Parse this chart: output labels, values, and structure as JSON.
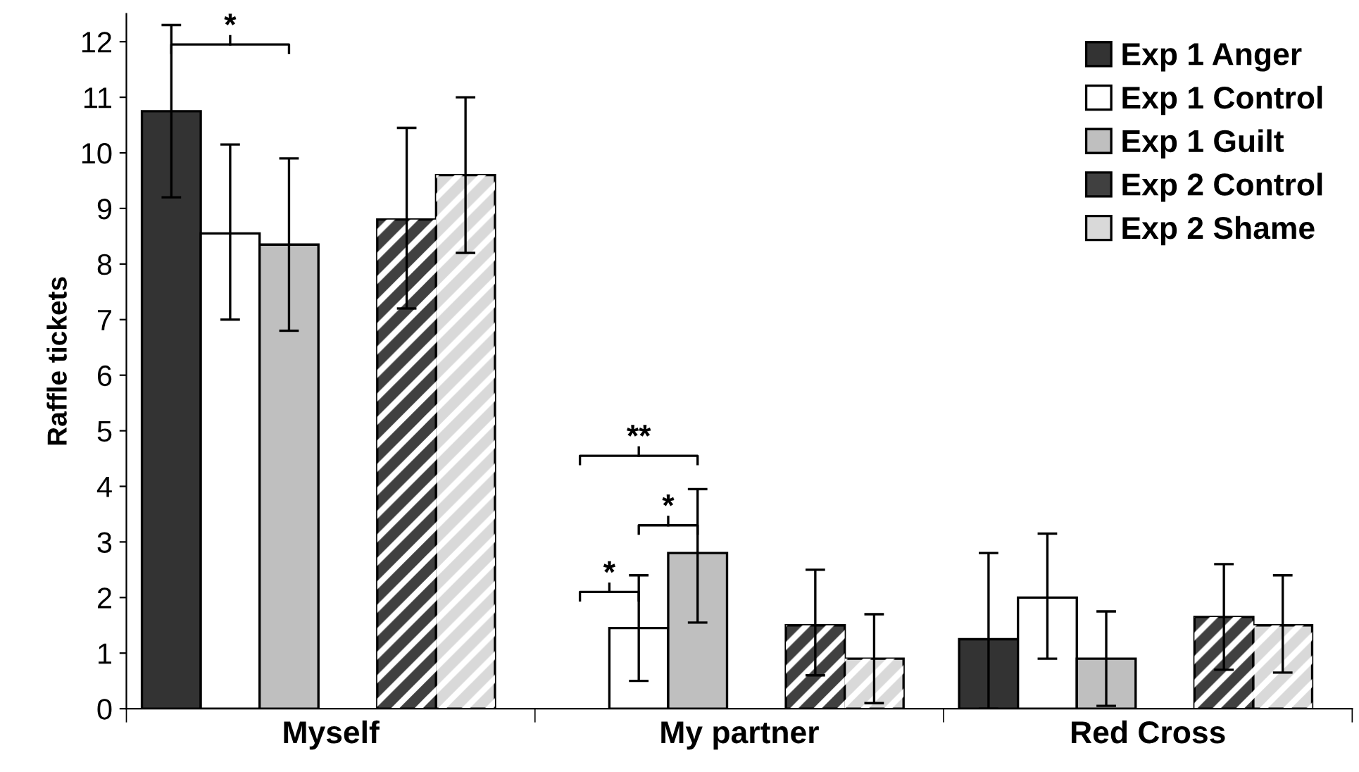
{
  "chart_data": {
    "type": "bar",
    "ylabel": "Raffle tickets",
    "categories": [
      "Myself",
      "My partner",
      "Red Cross"
    ],
    "series": [
      {
        "name": "Exp 1 Anger",
        "color": "#333333",
        "values": [
          10.75,
          null,
          1.25
        ],
        "errors": [
          [
            9.2,
            12.3
          ],
          null,
          [
            0,
            2.8
          ]
        ]
      },
      {
        "name": "Exp 1 Control",
        "color": "#ffffff",
        "values": [
          8.55,
          1.45,
          2.0
        ],
        "errors": [
          [
            7.0,
            10.15
          ],
          [
            0.5,
            2.4
          ],
          [
            0.9,
            3.15
          ]
        ]
      },
      {
        "name": "Exp 1 Guilt",
        "color": "#bfbfbf",
        "values": [
          8.35,
          2.8,
          0.9
        ],
        "errors": [
          [
            6.8,
            9.9
          ],
          [
            1.55,
            3.95
          ],
          [
            0.05,
            1.75
          ]
        ]
      },
      {
        "name": "Exp 2 Control",
        "color": "#404040",
        "values": [
          8.8,
          1.5,
          1.65
        ],
        "errors": [
          [
            7.2,
            10.45
          ],
          [
            0.6,
            2.5
          ],
          [
            0.7,
            2.6
          ]
        ]
      },
      {
        "name": "Exp 2 Shame",
        "color": "#d9d9d9",
        "values": [
          9.6,
          0.9,
          1.5
        ],
        "errors": [
          [
            8.2,
            11.0
          ],
          [
            0.1,
            1.7
          ],
          [
            0.65,
            2.4
          ]
        ]
      }
    ],
    "ylim": [
      0,
      12.5
    ],
    "yticks": [
      0,
      1,
      2,
      3,
      4,
      5,
      6,
      7,
      8,
      9,
      10,
      11,
      12
    ],
    "grid": false,
    "legend": "top right",
    "annotations": [
      "*",
      "**",
      "*",
      "*"
    ]
  }
}
